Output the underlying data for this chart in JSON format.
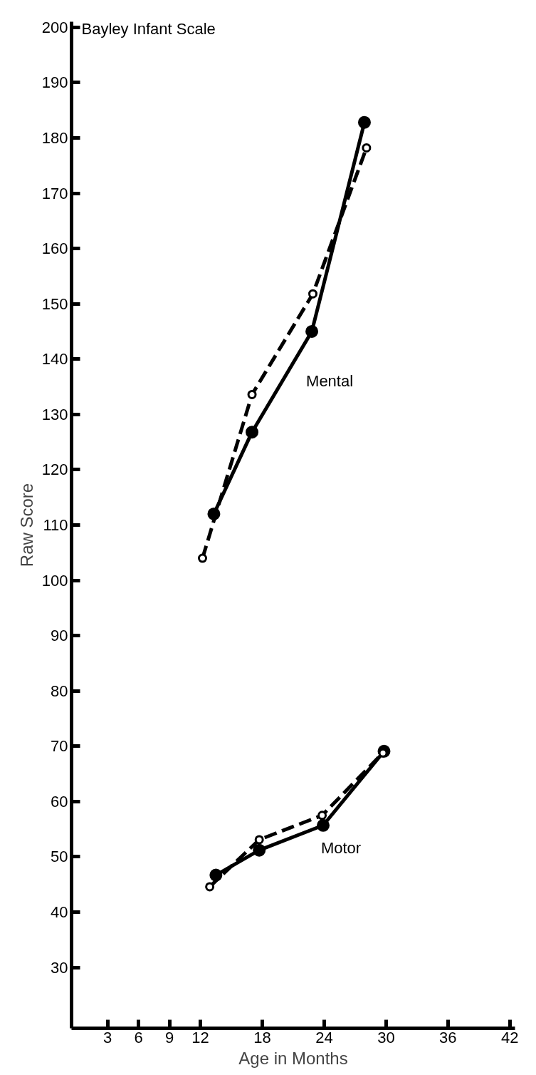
{
  "chart_data": {
    "type": "line",
    "title": "Bayley Infant Scale",
    "xlabel": "Age in Months",
    "ylabel": "Raw Score",
    "xlim": [
      -0.5,
      42.5
    ],
    "ylim": [
      19,
      201
    ],
    "xticks": [
      3,
      6,
      9,
      12,
      18,
      24,
      30,
      36,
      42
    ],
    "yticks": [
      30,
      40,
      50,
      60,
      70,
      80,
      90,
      100,
      110,
      120,
      130,
      140,
      150,
      160,
      170,
      180,
      190,
      200
    ],
    "grid": false,
    "marker": "circle",
    "series": [
      {
        "color": "#000000",
        "line_style": "solid",
        "x": [
          13.3,
          17.0,
          22.8,
          27.9
        ],
        "values": [
          112,
          126.8,
          145,
          182.8
        ]
      },
      {
        "color": "#000000",
        "line_style": "dashed",
        "x": [
          12.2,
          17.0,
          22.9,
          28.1
        ],
        "values": [
          104,
          133.6,
          151.8,
          178.2
        ]
      },
      {
        "color": "#000000",
        "line_style": "solid",
        "x": [
          13.5,
          17.7,
          23.9,
          29.8
        ],
        "values": [
          46.7,
          51.2,
          55.7,
          69.1
        ]
      },
      {
        "color": "#000000",
        "line_style": "dashed",
        "x": [
          12.9,
          17.7,
          23.8,
          29.7
        ],
        "values": [
          44.6,
          53.1,
          57.5,
          68.8
        ]
      }
    ],
    "annotations": [
      "Mental",
      "Motor"
    ]
  }
}
